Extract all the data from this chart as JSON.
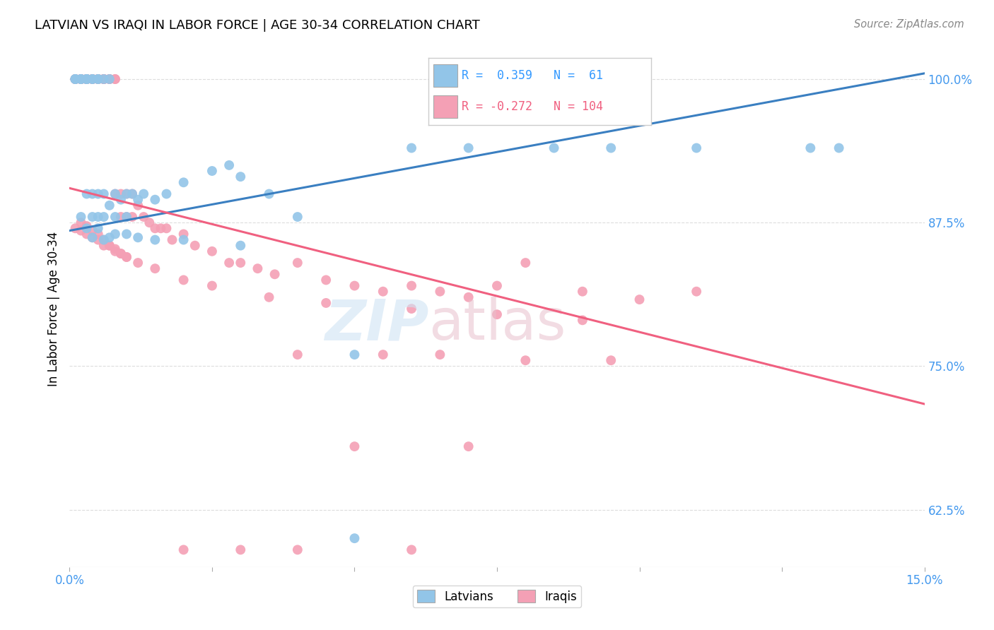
{
  "title": "LATVIAN VS IRAQI IN LABOR FORCE | AGE 30-34 CORRELATION CHART",
  "source": "Source: ZipAtlas.com",
  "ylabel": "In Labor Force | Age 30-34",
  "xlim": [
    0.0,
    0.15
  ],
  "ylim": [
    0.575,
    1.025
  ],
  "yticks": [
    0.625,
    0.75,
    0.875,
    1.0
  ],
  "ytick_labels": [
    "62.5%",
    "75.0%",
    "87.5%",
    "100.0%"
  ],
  "xticks": [
    0.0,
    0.025,
    0.05,
    0.075,
    0.1,
    0.125,
    0.15
  ],
  "xtick_labels": [
    "0.0%",
    "",
    "",
    "",
    "",
    "",
    "15.0%"
  ],
  "latvian_color": "#92c5e8",
  "iraqi_color": "#f4a0b5",
  "trend_latvian_color": "#3a7fc1",
  "trend_iraqi_color": "#f06080",
  "R_latvian": 0.359,
  "N_latvian": 61,
  "R_iraqi": -0.272,
  "N_iraqi": 104,
  "background_color": "#ffffff",
  "latvian_trend_x0": 0.0,
  "latvian_trend_y0": 0.868,
  "latvian_trend_x1": 0.15,
  "latvian_trend_y1": 1.005,
  "iraqi_trend_x0": 0.0,
  "iraqi_trend_y0": 0.905,
  "iraqi_trend_x1": 0.15,
  "iraqi_trend_y1": 0.717,
  "latvian_x": [
    0.001,
    0.001,
    0.001,
    0.002,
    0.002,
    0.002,
    0.003,
    0.003,
    0.003,
    0.003,
    0.003,
    0.004,
    0.004,
    0.004,
    0.004,
    0.005,
    0.005,
    0.005,
    0.005,
    0.006,
    0.006,
    0.006,
    0.007,
    0.007,
    0.008,
    0.008,
    0.009,
    0.01,
    0.01,
    0.011,
    0.012,
    0.013,
    0.015,
    0.017,
    0.02,
    0.025,
    0.028,
    0.03,
    0.035,
    0.04,
    0.05,
    0.06,
    0.07,
    0.085,
    0.095,
    0.11,
    0.13,
    0.135,
    0.002,
    0.003,
    0.004,
    0.005,
    0.006,
    0.007,
    0.008,
    0.01,
    0.012,
    0.015,
    0.02,
    0.03,
    0.05
  ],
  "latvian_y": [
    1.0,
    1.0,
    1.0,
    1.0,
    1.0,
    1.0,
    1.0,
    1.0,
    1.0,
    1.0,
    0.9,
    1.0,
    1.0,
    0.9,
    0.88,
    1.0,
    1.0,
    0.9,
    0.88,
    1.0,
    0.9,
    0.88,
    1.0,
    0.89,
    0.9,
    0.88,
    0.895,
    0.9,
    0.88,
    0.9,
    0.895,
    0.9,
    0.895,
    0.9,
    0.91,
    0.92,
    0.925,
    0.915,
    0.9,
    0.88,
    0.76,
    0.94,
    0.94,
    0.94,
    0.94,
    0.94,
    0.94,
    0.94,
    0.88,
    0.87,
    0.862,
    0.87,
    0.86,
    0.862,
    0.865,
    0.865,
    0.862,
    0.86,
    0.86,
    0.855,
    0.6
  ],
  "iraqi_x": [
    0.001,
    0.001,
    0.001,
    0.001,
    0.002,
    0.002,
    0.002,
    0.002,
    0.002,
    0.003,
    0.003,
    0.003,
    0.003,
    0.003,
    0.003,
    0.004,
    0.004,
    0.004,
    0.004,
    0.005,
    0.005,
    0.005,
    0.005,
    0.006,
    0.006,
    0.006,
    0.006,
    0.007,
    0.007,
    0.007,
    0.008,
    0.008,
    0.008,
    0.009,
    0.009,
    0.01,
    0.01,
    0.011,
    0.011,
    0.012,
    0.013,
    0.014,
    0.015,
    0.016,
    0.017,
    0.018,
    0.02,
    0.022,
    0.025,
    0.028,
    0.03,
    0.033,
    0.036,
    0.04,
    0.045,
    0.05,
    0.055,
    0.06,
    0.065,
    0.07,
    0.075,
    0.08,
    0.09,
    0.1,
    0.11,
    0.001,
    0.002,
    0.003,
    0.004,
    0.005,
    0.006,
    0.007,
    0.008,
    0.009,
    0.01,
    0.002,
    0.003,
    0.004,
    0.005,
    0.006,
    0.007,
    0.008,
    0.009,
    0.01,
    0.012,
    0.015,
    0.02,
    0.025,
    0.035,
    0.045,
    0.06,
    0.075,
    0.09,
    0.04,
    0.055,
    0.065,
    0.08,
    0.095,
    0.05,
    0.07,
    0.02,
    0.03,
    0.04,
    0.06
  ],
  "iraqi_y": [
    1.0,
    1.0,
    1.0,
    1.0,
    1.0,
    1.0,
    1.0,
    1.0,
    1.0,
    1.0,
    1.0,
    1.0,
    1.0,
    1.0,
    1.0,
    1.0,
    1.0,
    1.0,
    1.0,
    1.0,
    1.0,
    1.0,
    1.0,
    1.0,
    1.0,
    1.0,
    1.0,
    1.0,
    1.0,
    1.0,
    1.0,
    1.0,
    0.9,
    0.9,
    0.88,
    0.9,
    0.88,
    0.9,
    0.88,
    0.89,
    0.88,
    0.875,
    0.87,
    0.87,
    0.87,
    0.86,
    0.865,
    0.855,
    0.85,
    0.84,
    0.84,
    0.835,
    0.83,
    0.84,
    0.825,
    0.82,
    0.815,
    0.82,
    0.815,
    0.81,
    0.82,
    0.84,
    0.815,
    0.808,
    0.815,
    0.87,
    0.868,
    0.865,
    0.862,
    0.86,
    0.855,
    0.855,
    0.85,
    0.848,
    0.845,
    0.875,
    0.872,
    0.868,
    0.865,
    0.86,
    0.855,
    0.852,
    0.848,
    0.845,
    0.84,
    0.835,
    0.825,
    0.82,
    0.81,
    0.805,
    0.8,
    0.795,
    0.79,
    0.76,
    0.76,
    0.76,
    0.755,
    0.755,
    0.68,
    0.68,
    0.59,
    0.59,
    0.59,
    0.59
  ]
}
